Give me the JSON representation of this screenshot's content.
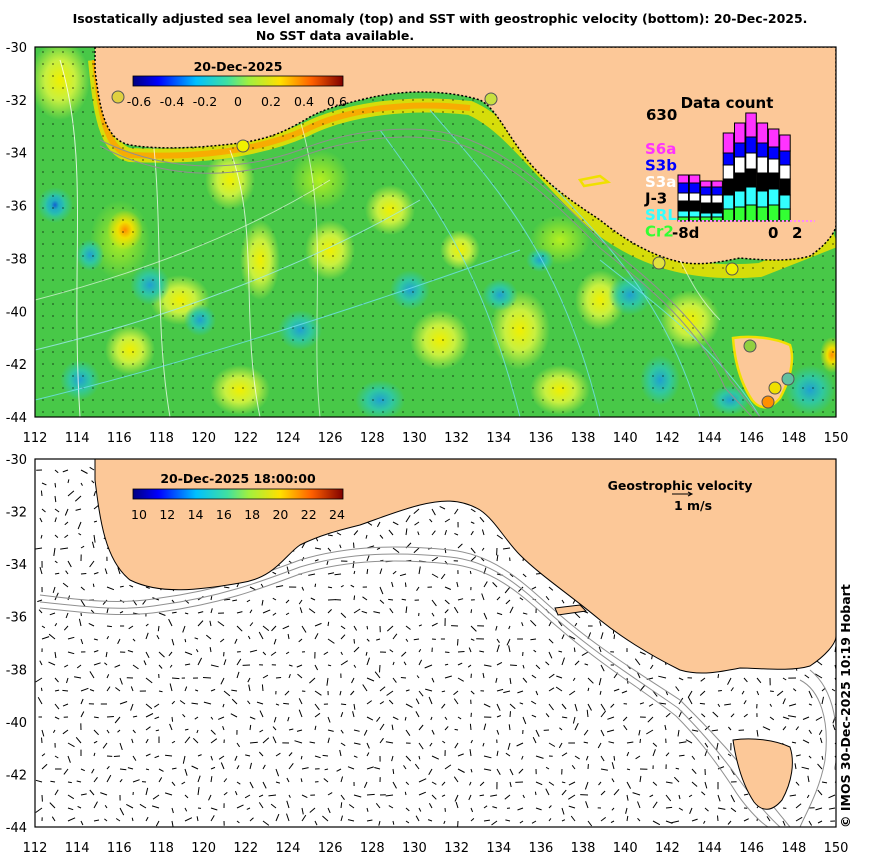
{
  "title": {
    "line1": "Isostatically adjusted sea level anomaly (top) and SST with geostrophic velocity (bottom): 20-Dec-2025.",
    "line2": "No SST data available."
  },
  "axes": {
    "lon_ticks": [
      "112",
      "114",
      "116",
      "118",
      "120",
      "122",
      "124",
      "126",
      "128",
      "130",
      "132",
      "134",
      "136",
      "138",
      "140",
      "142",
      "144",
      "146",
      "148",
      "150"
    ],
    "lat_ticks": [
      "-30",
      "-32",
      "-34",
      "-36",
      "-38",
      "-40",
      "-42",
      "-44"
    ]
  },
  "top_panel": {
    "colorbar_title": "20-Dec-2025",
    "colorbar_ticks": [
      "-0.6",
      "-0.4",
      "-0.2",
      "0",
      "0.2",
      "0.4",
      "0.6"
    ],
    "colorbar_range": [
      -0.6,
      0.6
    ],
    "data_count": {
      "title": "Data count",
      "max_label": "630",
      "x_left": "-8d",
      "x_mid": "0",
      "x_right": "2",
      "satellites": [
        {
          "name": "S6a",
          "color": "#ff33ff"
        },
        {
          "name": "S3b",
          "color": "#0000ff"
        },
        {
          "name": "S3a",
          "color": "#ffffff"
        },
        {
          "name": "J-3",
          "color": "#000000"
        },
        {
          "name": "SRL",
          "color": "#33ffff"
        },
        {
          "name": "Cr2",
          "color": "#33ff33"
        }
      ]
    }
  },
  "bottom_panel": {
    "colorbar_title": "20-Dec-2025 18:00:00",
    "colorbar_ticks": [
      "10",
      "12",
      "14",
      "16",
      "18",
      "20",
      "22",
      "24"
    ],
    "colorbar_range": [
      10,
      24
    ],
    "velocity_label": "Geostrophic velocity",
    "velocity_scale": "1 m/s"
  },
  "credit": "© IMOS 30-Dec-2025 10:19 Hobart",
  "colors": {
    "land": "#fcc898",
    "ocean_base": "#4cc84c",
    "coast_yellow": "#f5e600"
  }
}
